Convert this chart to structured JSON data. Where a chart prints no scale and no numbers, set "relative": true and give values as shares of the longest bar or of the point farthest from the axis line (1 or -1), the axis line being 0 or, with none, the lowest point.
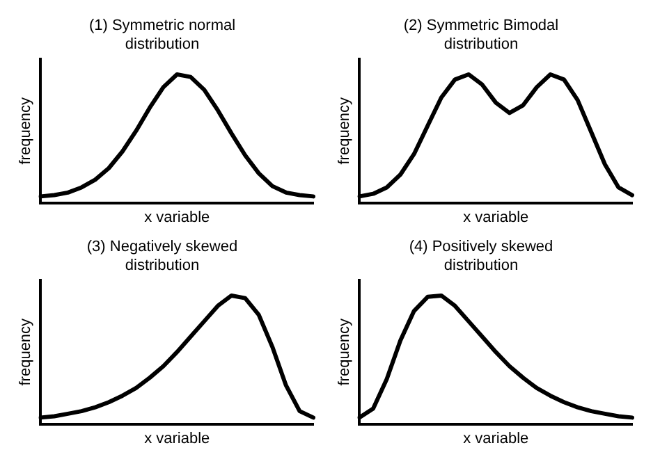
{
  "chart_data": [
    {
      "type": "line",
      "title": "(1) Symmetric normal distribution",
      "xlabel": "x variable",
      "ylabel": "frequency",
      "relative": true,
      "tick_labels": false,
      "grid": false,
      "legend": false,
      "marker": "none",
      "line_style": "solid",
      "color": "#000000",
      "categories": [
        null,
        null,
        null,
        null,
        null,
        null,
        null,
        null,
        null,
        null,
        null,
        null,
        null,
        null,
        null,
        null,
        null,
        null,
        null,
        null,
        null
      ],
      "values": [
        0.05,
        0.06,
        0.08,
        0.12,
        0.18,
        0.27,
        0.4,
        0.56,
        0.74,
        0.9,
        1,
        0.98,
        0.88,
        0.72,
        0.54,
        0.37,
        0.23,
        0.13,
        0.08,
        0.06,
        0.05
      ]
    },
    {
      "type": "line",
      "title": "(2) Symmetric Bimodal distribution",
      "xlabel": "x variable",
      "ylabel": "frequency",
      "relative": true,
      "tick_labels": false,
      "grid": false,
      "legend": false,
      "marker": "none",
      "line_style": "solid",
      "color": "#000000",
      "categories": [
        null,
        null,
        null,
        null,
        null,
        null,
        null,
        null,
        null,
        null,
        null,
        null,
        null,
        null,
        null,
        null,
        null,
        null,
        null,
        null,
        null
      ],
      "values": [
        0.05,
        0.07,
        0.12,
        0.22,
        0.38,
        0.6,
        0.82,
        0.96,
        1,
        0.92,
        0.78,
        0.7,
        0.76,
        0.9,
        1,
        0.96,
        0.8,
        0.55,
        0.3,
        0.12,
        0.06
      ]
    },
    {
      "type": "line",
      "title": "(3) Negatively skewed distribution",
      "xlabel": "x variable",
      "ylabel": "frequency",
      "relative": true,
      "tick_labels": false,
      "grid": false,
      "legend": false,
      "marker": "none",
      "line_style": "solid",
      "color": "#000000",
      "categories": [
        null,
        null,
        null,
        null,
        null,
        null,
        null,
        null,
        null,
        null,
        null,
        null,
        null,
        null,
        null,
        null,
        null,
        null,
        null,
        null,
        null
      ],
      "values": [
        0.05,
        0.06,
        0.08,
        0.1,
        0.13,
        0.17,
        0.22,
        0.28,
        0.36,
        0.45,
        0.56,
        0.68,
        0.8,
        0.92,
        1,
        0.98,
        0.85,
        0.6,
        0.3,
        0.1,
        0.05
      ]
    },
    {
      "type": "line",
      "title": "(4) Positively skewed distribution",
      "xlabel": "x variable",
      "ylabel": "frequency",
      "relative": true,
      "tick_labels": false,
      "grid": false,
      "legend": false,
      "marker": "none",
      "line_style": "solid",
      "color": "#000000",
      "categories": [
        null,
        null,
        null,
        null,
        null,
        null,
        null,
        null,
        null,
        null,
        null,
        null,
        null,
        null,
        null,
        null,
        null,
        null,
        null,
        null,
        null
      ],
      "values": [
        0.05,
        0.12,
        0.35,
        0.65,
        0.88,
        0.99,
        1,
        0.92,
        0.8,
        0.68,
        0.56,
        0.45,
        0.36,
        0.28,
        0.22,
        0.17,
        0.13,
        0.1,
        0.08,
        0.06,
        0.05
      ]
    }
  ]
}
